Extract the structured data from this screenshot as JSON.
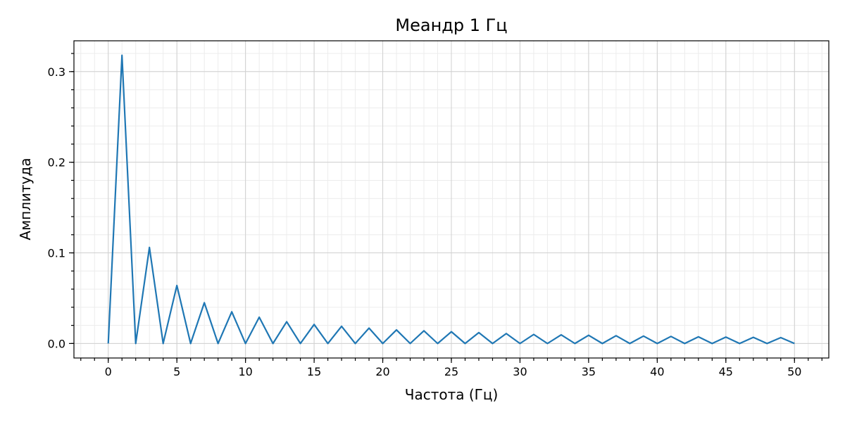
{
  "chart_data": {
    "type": "line",
    "title": "Меандр 1 Гц",
    "xlabel": "Частота (Гц)",
    "ylabel": "Амплитуда",
    "xlim": [
      -2.5,
      52.5
    ],
    "ylim": [
      -0.016,
      0.334
    ],
    "x_major_ticks": [
      0,
      5,
      10,
      15,
      20,
      25,
      30,
      35,
      40,
      45,
      50
    ],
    "x_tick_labels": [
      "0",
      "5",
      "10",
      "15",
      "20",
      "25",
      "30",
      "35",
      "40",
      "45",
      "50"
    ],
    "x_minor_step": 1,
    "y_major_ticks": [
      0.0,
      0.1,
      0.2,
      0.3
    ],
    "y_tick_labels": [
      "0.0",
      "0.1",
      "0.2",
      "0.3"
    ],
    "y_minor_step": 0.02,
    "grid": true,
    "series": [
      {
        "color": "#1f77b4",
        "x": [
          0,
          1,
          2,
          3,
          4,
          5,
          6,
          7,
          8,
          9,
          10,
          11,
          12,
          13,
          14,
          15,
          16,
          17,
          18,
          19,
          20,
          21,
          22,
          23,
          24,
          25,
          26,
          27,
          28,
          29,
          30,
          31,
          32,
          33,
          34,
          35,
          36,
          37,
          38,
          39,
          40,
          41,
          42,
          43,
          44,
          45,
          46,
          47,
          48,
          49,
          50
        ],
        "y": [
          0,
          0.318,
          0,
          0.106,
          0,
          0.064,
          0,
          0.045,
          0,
          0.035,
          0,
          0.029,
          0,
          0.024,
          0,
          0.021,
          0,
          0.019,
          0,
          0.017,
          0,
          0.015,
          0,
          0.014,
          0,
          0.013,
          0,
          0.012,
          0,
          0.011,
          0,
          0.01,
          0,
          0.0096,
          0,
          0.0091,
          0,
          0.0086,
          0,
          0.0082,
          0,
          0.0078,
          0,
          0.0074,
          0,
          0.0071,
          0,
          0.0068,
          0,
          0.0065,
          0
        ]
      }
    ]
  }
}
